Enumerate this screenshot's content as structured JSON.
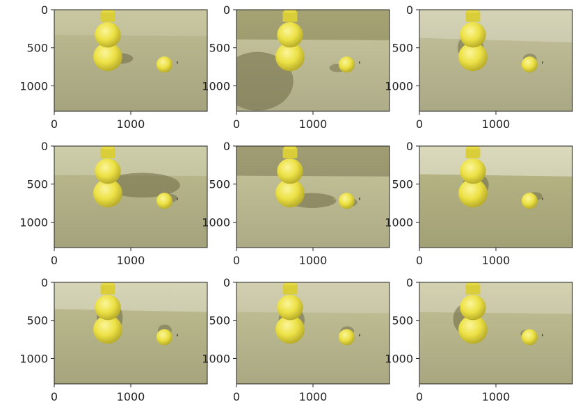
{
  "figure": {
    "layout": {
      "rows": 3,
      "cols": 3
    },
    "x_ticks": [
      "0",
      "1000"
    ],
    "y_ticks": [
      "0",
      "500",
      "1000"
    ],
    "x_tick_values": [
      0,
      1000
    ],
    "y_tick_values": [
      0,
      500,
      1000
    ],
    "image_extent": {
      "width": 2000,
      "height": 1334
    },
    "colors": {
      "wall": "#d8d6a8",
      "floor": "#c7c494",
      "object_yellow": "#ece145",
      "shadow": "#6d6a43",
      "axis": "#222222"
    },
    "panels": [
      {
        "wall": "#d4d2aa",
        "floor": "#c9c79a",
        "horizon": 330,
        "tilt": 18,
        "sx": 1,
        "sy": 0,
        "sw": 0.35,
        "bx": 0,
        "by": 0,
        "bw": 0
      },
      {
        "wall": "#aeab7a",
        "floor": "#d4d2a7",
        "horizon": 390,
        "tilt": 10,
        "sx": -1,
        "sy": 1,
        "sw": 0.95,
        "bx": -1,
        "by": 0.4,
        "bw": 0.45
      },
      {
        "wall": "#e0dfc0",
        "floor": "#cfcda3",
        "horizon": 370,
        "tilt": 60,
        "sx": -0.15,
        "sy": -1,
        "sw": 0.45,
        "bx": 0.05,
        "by": -1,
        "bw": 0.3
      },
      {
        "wall": "#d9d8b2",
        "floor": "#c8c697",
        "horizon": 380,
        "tilt": 15,
        "sx": 1,
        "sy": -0.4,
        "sw": 1.0,
        "bx": 0.9,
        "by": -0.4,
        "bw": 0.35
      },
      {
        "wall": "#a8a57a",
        "floor": "#d2d0a3",
        "horizon": 390,
        "tilt": 10,
        "sx": 0.8,
        "sy": 0.3,
        "sw": 0.8,
        "bx": 0.5,
        "by": 0.2,
        "bw": 0.4
      },
      {
        "wall": "#e6e5c5",
        "floor": "#c5c38f",
        "horizon": 370,
        "tilt": 30,
        "sx": 0.2,
        "sy": -1,
        "sw": 0.4,
        "bx": 1.0,
        "by": -0.8,
        "bw": 0.3
      },
      {
        "wall": "#e1e0c0",
        "floor": "#cac898",
        "horizon": 350,
        "tilt": 40,
        "sx": 0.1,
        "sy": -1,
        "sw": 0.55,
        "bx": 0.05,
        "by": -1,
        "bw": 0.35
      },
      {
        "wall": "#dcdab8",
        "floor": "#cfcd9f",
        "horizon": 390,
        "tilt": 15,
        "sx": 0.1,
        "sy": -1,
        "sw": 0.45,
        "bx": 0.1,
        "by": -1,
        "bw": 0.3
      },
      {
        "wall": "#dedcb9",
        "floor": "#cdcb9c",
        "horizon": 390,
        "tilt": 25,
        "sx": -0.4,
        "sy": -1,
        "sw": 0.5,
        "bx": -0.4,
        "by": -0.6,
        "bw": 0.3
      }
    ]
  }
}
